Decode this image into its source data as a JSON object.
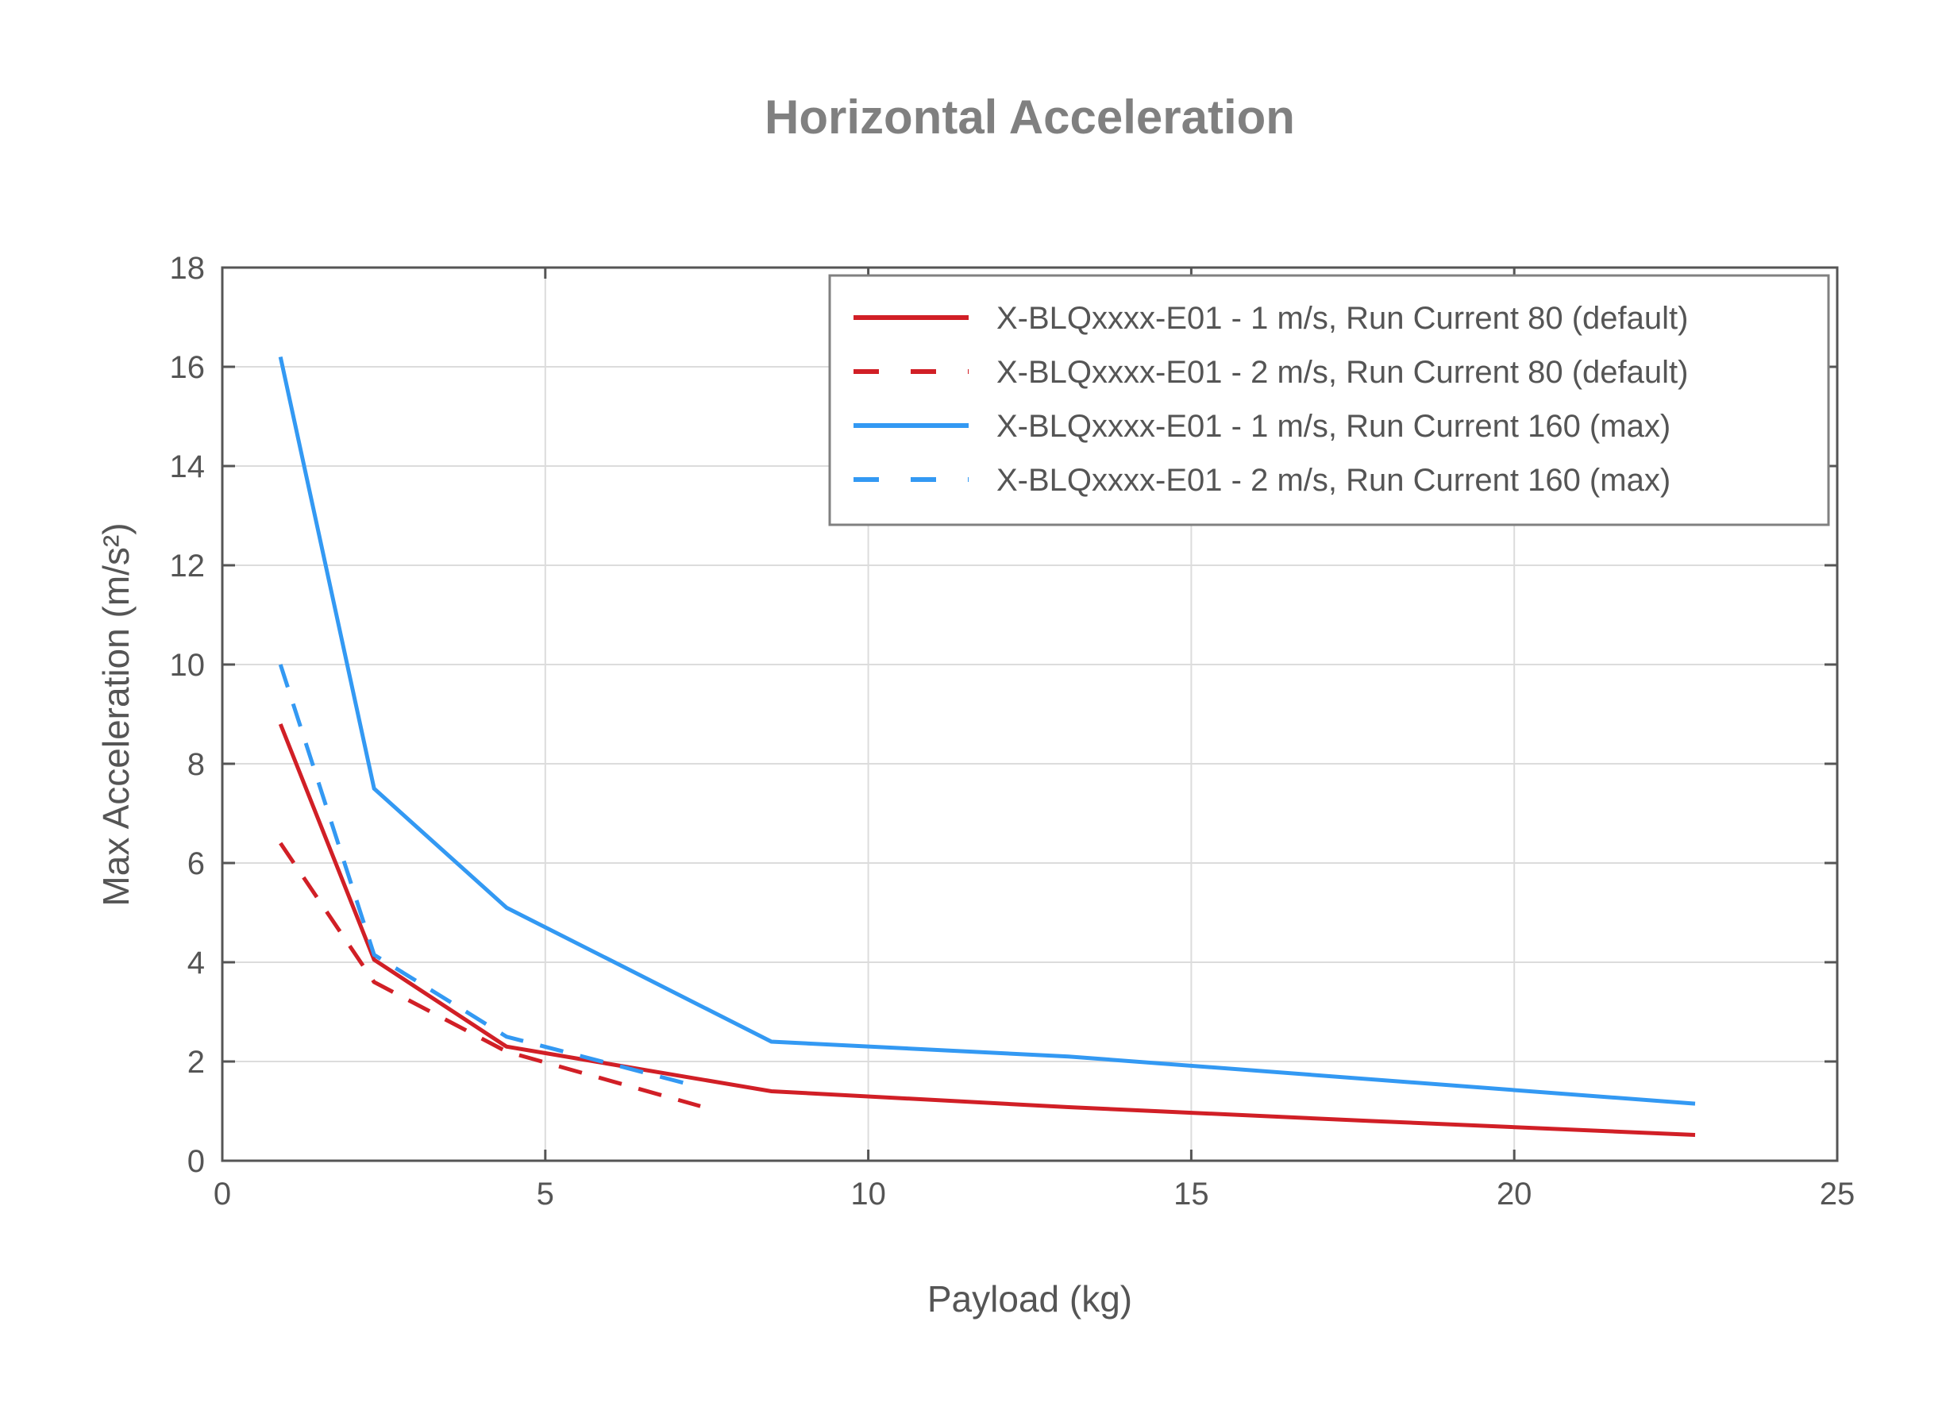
{
  "chart_data": {
    "type": "line",
    "title": "Horizontal Acceleration",
    "xlabel": "Payload (kg)",
    "ylabel": "Max Acceleration (m/s²)",
    "xlim": [
      0,
      25
    ],
    "ylim": [
      0,
      18
    ],
    "xticks": [
      0,
      5,
      10,
      15,
      20,
      25
    ],
    "yticks": [
      0,
      2,
      4,
      6,
      8,
      10,
      12,
      14,
      16,
      18
    ],
    "grid": true,
    "legend_position": "upper right",
    "series": [
      {
        "name": "X-BLQxxxx-E01 - 1 m/s, Run Current 80 (default)",
        "color": "#d11f26",
        "dash": "solid",
        "x": [
          0.9,
          2.35,
          4.4,
          8.5,
          13.1,
          17.8,
          22.8
        ],
        "values": [
          8.8,
          4.05,
          2.3,
          1.4,
          1.08,
          0.8,
          0.52
        ]
      },
      {
        "name": "X-BLQxxxx-E01 - 2 m/s, Run Current 80 (default)",
        "color": "#d11f26",
        "dash": "dashed",
        "x": [
          0.9,
          2.35,
          4.4,
          7.4
        ],
        "values": [
          6.4,
          3.6,
          2.2,
          1.1
        ]
      },
      {
        "name": "X-BLQxxxx-E01 - 1 m/s, Run Current 160 (max)",
        "color": "#3399f3",
        "dash": "solid",
        "x": [
          0.9,
          2.35,
          4.4,
          8.5,
          13.1,
          22.8
        ],
        "values": [
          16.2,
          7.5,
          5.1,
          2.4,
          2.1,
          1.15
        ]
      },
      {
        "name": "X-BLQxxxx-E01 - 2 m/s, Run Current 160 (max)",
        "color": "#3399f3",
        "dash": "dashed",
        "x": [
          0.9,
          2.35,
          4.4,
          7.2
        ],
        "values": [
          10.0,
          4.15,
          2.5,
          1.55
        ]
      }
    ]
  }
}
